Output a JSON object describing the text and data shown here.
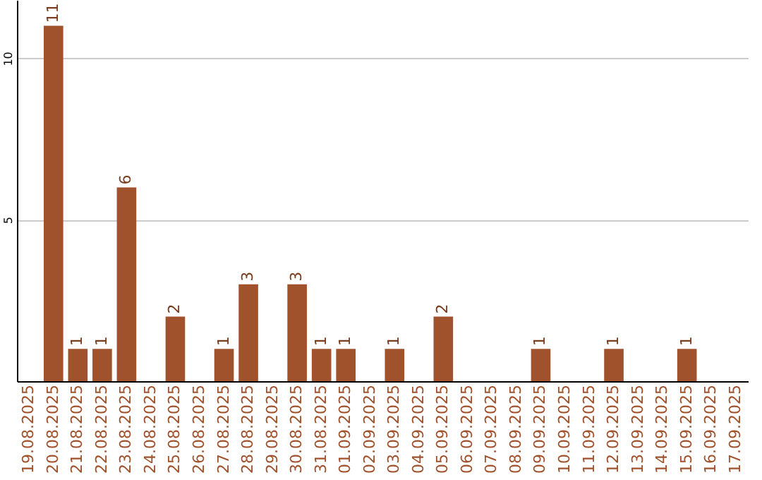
{
  "chart_data": {
    "type": "bar",
    "categories": [
      "19.08.2025",
      "20.08.2025",
      "21.08.2025",
      "22.08.2025",
      "23.08.2025",
      "24.08.2025",
      "25.08.2025",
      "26.08.2025",
      "27.08.2025",
      "28.08.2025",
      "29.08.2025",
      "30.08.2025",
      "31.08.2025",
      "01.09.2025",
      "02.09.2025",
      "03.09.2025",
      "04.09.2025",
      "05.09.2025",
      "06.09.2025",
      "07.09.2025",
      "08.09.2025",
      "09.09.2025",
      "10.09.2025",
      "11.09.2025",
      "12.09.2025",
      "13.09.2025",
      "14.09.2025",
      "15.09.2025",
      "16.09.2025",
      "17.09.2025"
    ],
    "values": [
      0,
      11,
      1,
      1,
      6,
      0,
      2,
      0,
      1,
      3,
      0,
      3,
      1,
      1,
      0,
      1,
      0,
      2,
      0,
      0,
      0,
      1,
      0,
      0,
      1,
      0,
      0,
      1,
      0,
      0
    ],
    "value_labels": [
      null,
      "11",
      "1",
      "1",
      "6",
      null,
      "2",
      null,
      "1",
      "3",
      null,
      "3",
      "1",
      "1",
      null,
      "1",
      null,
      "2",
      null,
      null,
      null,
      "1",
      null,
      null,
      "1",
      null,
      null,
      "1",
      null,
      null
    ],
    "color": "#a0522d",
    "ylim": [
      0,
      11.8
    ],
    "yticks": [
      5,
      10
    ],
    "grid": "y"
  }
}
